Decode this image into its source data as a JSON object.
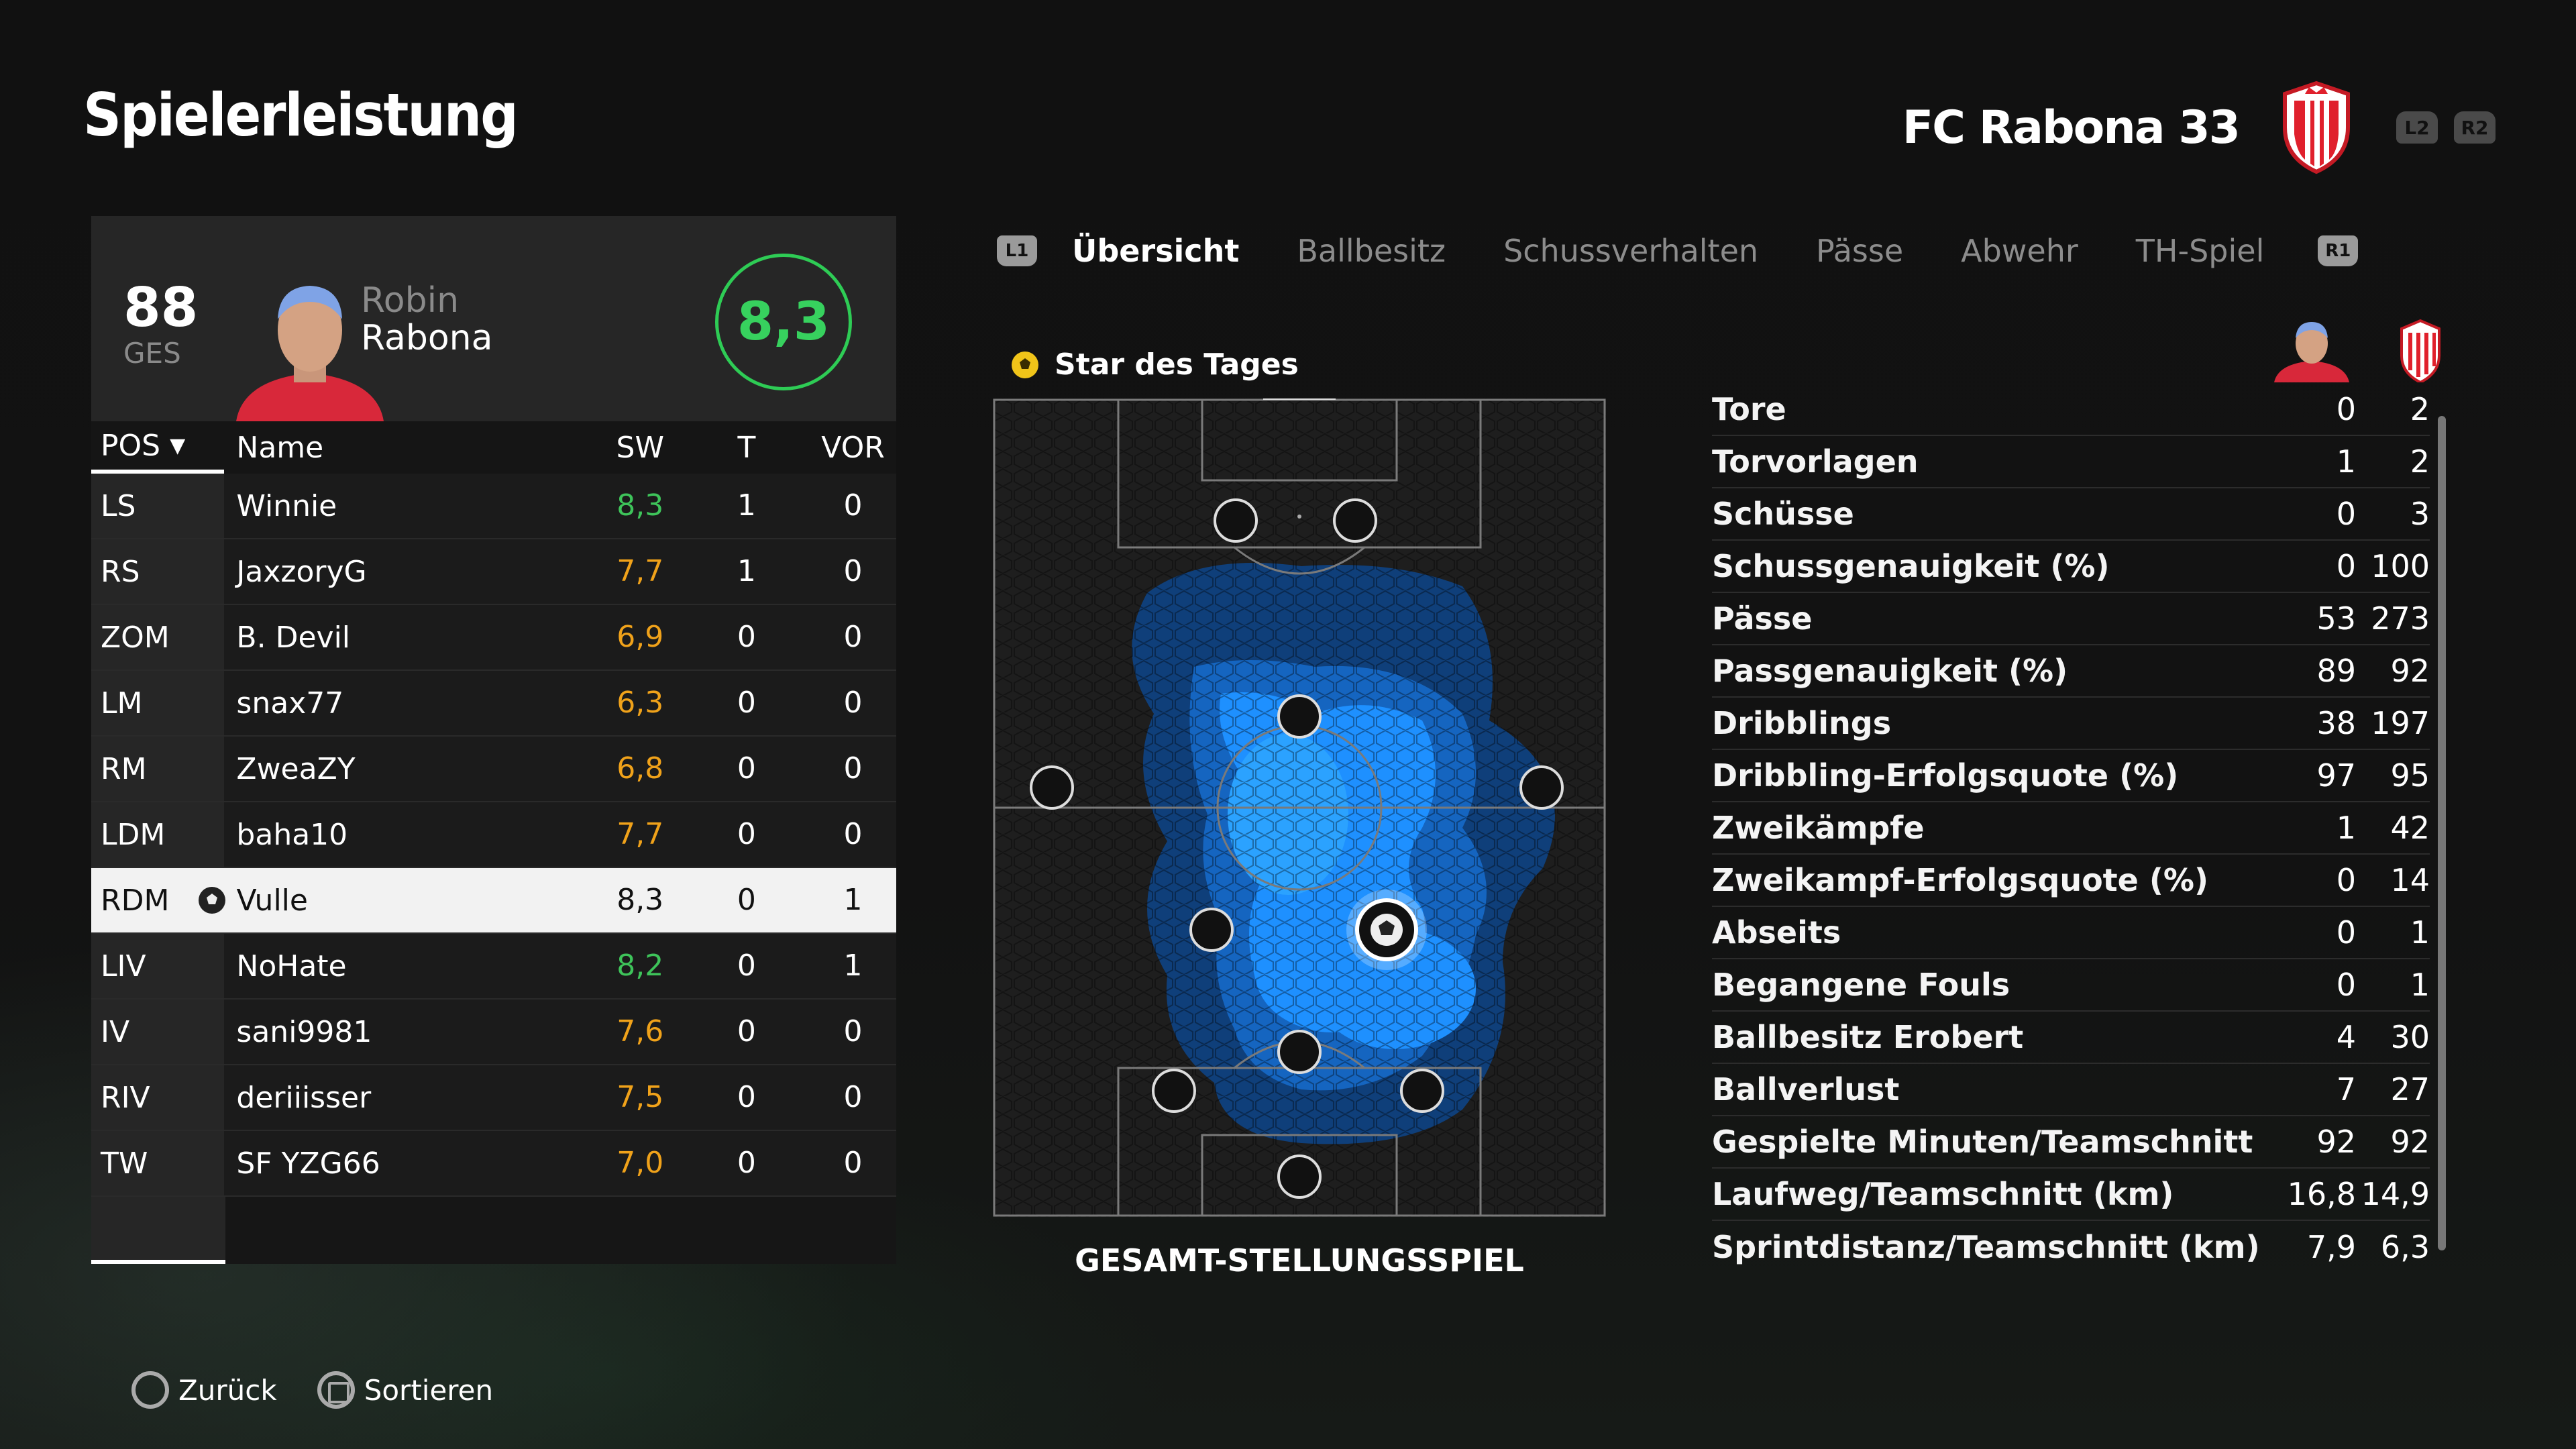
{
  "page": {
    "title": "Spielerleistung"
  },
  "team": {
    "name": "FC Rabona 33",
    "l2": "L2",
    "r2": "R2"
  },
  "player": {
    "overall": "88",
    "overall_label": "GES",
    "first_name": "Robin",
    "last_name": "Rabona",
    "rating": "8,3"
  },
  "table": {
    "headers": {
      "pos": "POS",
      "name": "Name",
      "sw": "SW",
      "t": "T",
      "vor": "VOR"
    },
    "rows": [
      {
        "pos": "LS",
        "name": "Winnie",
        "sw": "8,3",
        "t": "1",
        "vor": "0"
      },
      {
        "pos": "RS",
        "name": "JaxzoryG",
        "sw": "7,7",
        "t": "1",
        "vor": "0"
      },
      {
        "pos": "ZOM",
        "name": "B. Devil",
        "sw": "6,9",
        "t": "0",
        "vor": "0"
      },
      {
        "pos": "LM",
        "name": "snax77",
        "sw": "6,3",
        "t": "0",
        "vor": "0"
      },
      {
        "pos": "RM",
        "name": "ZweaZY",
        "sw": "6,8",
        "t": "0",
        "vor": "0"
      },
      {
        "pos": "LDM",
        "name": "baha10",
        "sw": "7,7",
        "t": "0",
        "vor": "0"
      },
      {
        "pos": "RDM",
        "name": "Vulle",
        "sw": "8,3",
        "t": "0",
        "vor": "1"
      },
      {
        "pos": "LIV",
        "name": "NoHate",
        "sw": "8,2",
        "t": "0",
        "vor": "1"
      },
      {
        "pos": "IV",
        "name": "sani9981",
        "sw": "7,6",
        "t": "0",
        "vor": "0"
      },
      {
        "pos": "RIV",
        "name": "deriiisser",
        "sw": "7,5",
        "t": "0",
        "vor": "0"
      },
      {
        "pos": "TW",
        "name": "SF YZG66",
        "sw": "7,0",
        "t": "0",
        "vor": "0"
      }
    ]
  },
  "tabs": {
    "l1": "L1",
    "r1": "R1",
    "items": [
      "Übersicht",
      "Ballbesitz",
      "Schussverhalten",
      "Pässe",
      "Abwehr",
      "TH-Spiel"
    ]
  },
  "pitch": {
    "star_label": "Star des Tages",
    "caption": "GESAMT-STELLUNGSSPIEL"
  },
  "stats": [
    {
      "label": "Tore",
      "player": "0",
      "team": "2"
    },
    {
      "label": "Torvorlagen",
      "player": "1",
      "team": "2"
    },
    {
      "label": "Schüsse",
      "player": "0",
      "team": "3"
    },
    {
      "label": "Schussgenauigkeit (%)",
      "player": "0",
      "team": "100"
    },
    {
      "label": "Pässe",
      "player": "53",
      "team": "273"
    },
    {
      "label": "Passgenauigkeit (%)",
      "player": "89",
      "team": "92"
    },
    {
      "label": "Dribblings",
      "player": "38",
      "team": "197"
    },
    {
      "label": "Dribbling-Erfolgsquote (%)",
      "player": "97",
      "team": "95"
    },
    {
      "label": "Zweikämpfe",
      "player": "1",
      "team": "42"
    },
    {
      "label": "Zweikampf-Erfolgsquote (%)",
      "player": "0",
      "team": "14"
    },
    {
      "label": "Abseits",
      "player": "0",
      "team": "1"
    },
    {
      "label": "Begangene Fouls",
      "player": "0",
      "team": "1"
    },
    {
      "label": "Ballbesitz Erobert",
      "player": "4",
      "team": "30"
    },
    {
      "label": "Ballverlust",
      "player": "7",
      "team": "27"
    },
    {
      "label": "Gespielte Minuten/Teamschnitt",
      "player": "92",
      "team": "92"
    },
    {
      "label": "Laufweg/Teamschnitt (km)",
      "player": "16,8",
      "team": "14,9"
    },
    {
      "label": "Sprintdistanz/Teamschnitt (km)",
      "player": "7,9",
      "team": "6,3"
    }
  ],
  "footer": {
    "back": "Zurück",
    "sort": "Sortieren"
  },
  "colors": {
    "accent_green": "#3ec45a",
    "accent_orange": "#f0a21a",
    "team_red": "#e0202c",
    "heat_blue": "#1e90ff"
  }
}
